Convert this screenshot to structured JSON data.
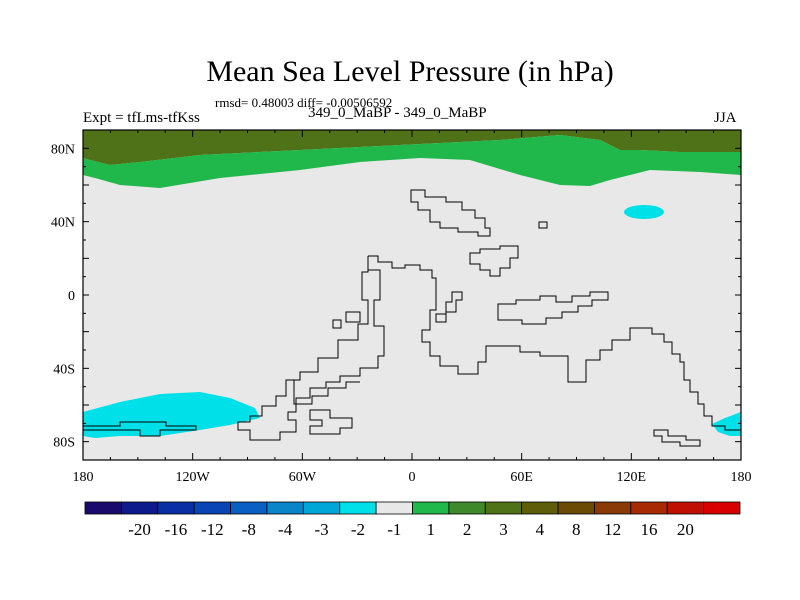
{
  "title": "Mean Sea Level Pressure (in hPa)",
  "stats_text": "rmsd= 0.48003 diff= -0.00506592",
  "left_label": "Expt = tfLms-tfKss",
  "center_label": "349_0_MaBP - 349_0_MaBP",
  "right_label": "JJA",
  "lat_ticks": [
    {
      "label": "80N",
      "value": 80
    },
    {
      "label": "40N",
      "value": 40
    },
    {
      "label": "0",
      "value": 0
    },
    {
      "label": "40S",
      "value": -40
    },
    {
      "label": "80S",
      "value": -80
    }
  ],
  "lon_ticks": [
    {
      "label": "180",
      "value": -180
    },
    {
      "label": "120W",
      "value": -120
    },
    {
      "label": "60W",
      "value": -60
    },
    {
      "label": "0",
      "value": 0
    },
    {
      "label": "60E",
      "value": 60
    },
    {
      "label": "120E",
      "value": 120
    },
    {
      "label": "180",
      "value": 180
    }
  ],
  "colorbar": {
    "colors": [
      "#1a0a6b",
      "#0c1a8c",
      "#0a2ea3",
      "#0a45b5",
      "#0a5fc2",
      "#0a85c8",
      "#00a6d6",
      "#00e0e8",
      "#e8e8e8",
      "#20b84a",
      "#3e8a2a",
      "#4f7218",
      "#5e5e0a",
      "#6b4a06",
      "#8a3a06",
      "#a82a04",
      "#c01004",
      "#d80000"
    ],
    "labels": [
      "-20",
      "-16",
      "-12",
      "-8",
      "-4",
      "-3",
      "-2",
      "-1",
      "1",
      "2",
      "3",
      "4",
      "8",
      "12",
      "16",
      "20"
    ]
  },
  "colors": {
    "background": "#e8e8e8",
    "dark_green": "#4f7218",
    "green": "#20b84a",
    "cyan": "#00e0e8",
    "coast": "#000000"
  }
}
